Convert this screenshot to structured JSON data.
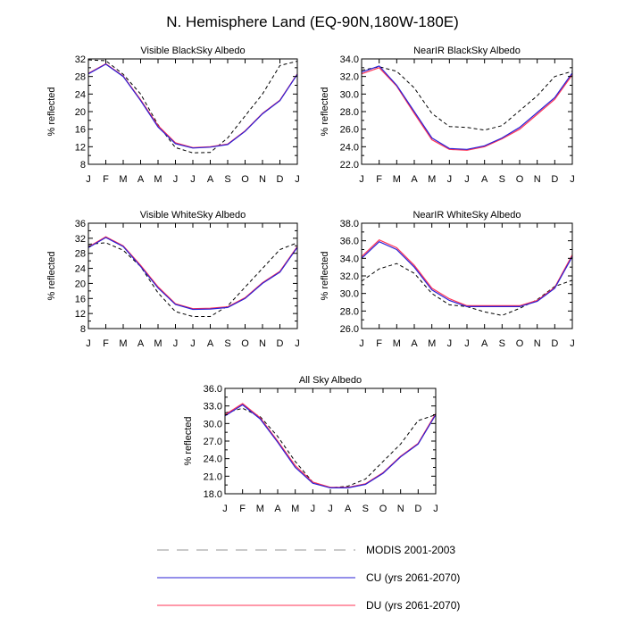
{
  "page_title": "N. Hemisphere Land (EQ-90N,180W-180E)",
  "colors": {
    "modis": "#000000",
    "cu": "#2a1fd6",
    "du": "#ff3355",
    "legend_modis": "#aaaaaa"
  },
  "legend": [
    {
      "label": "MODIS 2001-2003",
      "color": "#aaaaaa",
      "dash": true
    },
    {
      "label": "CU (yrs 2061-2070)",
      "color": "#2a1fd6",
      "dash": false
    },
    {
      "label": "DU (yrs 2061-2070)",
      "color": "#ff3355",
      "dash": false
    }
  ],
  "chart_data": [
    {
      "type": "line",
      "title": "Visible BlackSky Albedo",
      "ylabel": "% reflected",
      "categories": [
        "J",
        "F",
        "M",
        "A",
        "M",
        "J",
        "J",
        "A",
        "S",
        "O",
        "N",
        "D",
        "J"
      ],
      "ylim": [
        8,
        32
      ],
      "yticks": [
        "8",
        "12",
        "16",
        "20",
        "24",
        "28",
        "32"
      ],
      "series": [
        {
          "name": "MODIS 2001-2003",
          "values": [
            31.8,
            31.6,
            28.5,
            24.0,
            17.0,
            11.8,
            10.6,
            10.7,
            14.0,
            19.0,
            24.0,
            30.5,
            31.5
          ]
        },
        {
          "name": "CU (yrs 2061-2070)",
          "values": [
            28.6,
            30.8,
            28.0,
            22.5,
            16.5,
            12.7,
            11.7,
            11.9,
            12.5,
            15.5,
            19.5,
            22.5,
            28.5
          ]
        },
        {
          "name": "DU (yrs 2061-2070)",
          "values": [
            28.7,
            30.9,
            28.1,
            22.7,
            16.8,
            12.9,
            11.8,
            12.0,
            12.6,
            15.6,
            19.6,
            22.6,
            28.6
          ]
        }
      ]
    },
    {
      "type": "line",
      "title": "NearIR BlackSky Albedo",
      "ylabel": "% reflected",
      "categories": [
        "J",
        "F",
        "M",
        "A",
        "M",
        "J",
        "J",
        "A",
        "S",
        "O",
        "N",
        "D",
        "J"
      ],
      "ylim": [
        22,
        34
      ],
      "yticks": [
        "22.0",
        "24.0",
        "26.0",
        "28.0",
        "30.0",
        "32.0",
        "34.0"
      ],
      "series": [
        {
          "name": "MODIS 2001-2003",
          "values": [
            32.7,
            33.1,
            32.6,
            30.7,
            27.8,
            26.3,
            26.2,
            25.9,
            26.4,
            28.1,
            29.8,
            32.0,
            32.6
          ]
        },
        {
          "name": "CU (yrs 2061-2070)",
          "values": [
            32.5,
            33.2,
            31.0,
            28.0,
            25.0,
            23.8,
            23.7,
            24.1,
            25.0,
            26.2,
            27.9,
            29.6,
            32.4
          ]
        },
        {
          "name": "DU (yrs 2061-2070)",
          "values": [
            32.3,
            33.0,
            30.9,
            27.8,
            24.8,
            23.7,
            23.6,
            24.0,
            24.9,
            26.0,
            27.7,
            29.4,
            32.2
          ]
        }
      ]
    },
    {
      "type": "line",
      "title": "Visible WhiteSky Albedo",
      "ylabel": "% reflected",
      "categories": [
        "J",
        "F",
        "M",
        "A",
        "M",
        "J",
        "J",
        "A",
        "S",
        "O",
        "N",
        "D",
        "J"
      ],
      "ylim": [
        8,
        36
      ],
      "yticks": [
        "8",
        "12",
        "16",
        "20",
        "24",
        "28",
        "32",
        "36"
      ],
      "series": [
        {
          "name": "MODIS 2001-2003",
          "values": [
            30.4,
            30.8,
            28.8,
            24.5,
            17.5,
            12.5,
            11.2,
            11.2,
            14.0,
            19.0,
            24.0,
            29.0,
            30.8
          ]
        },
        {
          "name": "CU (yrs 2061-2070)",
          "values": [
            29.5,
            32.2,
            29.8,
            24.5,
            18.8,
            14.4,
            13.1,
            13.2,
            13.6,
            16.0,
            20.0,
            23.0,
            29.6
          ]
        },
        {
          "name": "DU (yrs 2061-2070)",
          "values": [
            29.7,
            32.4,
            30.0,
            24.8,
            19.1,
            14.6,
            13.3,
            13.4,
            13.8,
            16.2,
            20.2,
            23.2,
            29.8
          ]
        }
      ]
    },
    {
      "type": "line",
      "title": "NearIR WhiteSky Albedo",
      "ylabel": "% reflected",
      "categories": [
        "J",
        "F",
        "M",
        "A",
        "M",
        "J",
        "J",
        "A",
        "S",
        "O",
        "N",
        "D",
        "J"
      ],
      "ylim": [
        26,
        38
      ],
      "yticks": [
        "26.0",
        "28.0",
        "30.0",
        "32.0",
        "34.0",
        "36.0",
        "38.0"
      ],
      "series": [
        {
          "name": "MODIS 2001-2003",
          "values": [
            31.4,
            32.8,
            33.4,
            32.3,
            30.0,
            28.7,
            28.5,
            27.9,
            27.5,
            28.3,
            29.3,
            30.8,
            31.5
          ]
        },
        {
          "name": "CU (yrs 2061-2070)",
          "values": [
            34.0,
            35.9,
            35.0,
            33.0,
            30.4,
            29.2,
            28.5,
            28.5,
            28.5,
            28.5,
            29.1,
            30.6,
            34.2
          ]
        },
        {
          "name": "DU (yrs 2061-2070)",
          "values": [
            34.2,
            36.1,
            35.2,
            33.2,
            30.6,
            29.4,
            28.6,
            28.6,
            28.6,
            28.6,
            29.2,
            30.7,
            34.4
          ]
        }
      ]
    },
    {
      "type": "line",
      "title": "All Sky Albedo",
      "ylabel": "% reflected",
      "categories": [
        "J",
        "F",
        "M",
        "A",
        "M",
        "J",
        "J",
        "A",
        "S",
        "O",
        "N",
        "D",
        "J"
      ],
      "ylim": [
        18,
        36
      ],
      "yticks": [
        "18.0",
        "21.0",
        "24.0",
        "27.0",
        "30.0",
        "33.0",
        "36.0"
      ],
      "series": [
        {
          "name": "MODIS 2001-2003",
          "values": [
            31.8,
            32.6,
            31.2,
            27.8,
            23.5,
            20.0,
            19.0,
            19.3,
            20.5,
            23.5,
            26.5,
            30.5,
            31.5
          ]
        },
        {
          "name": "CU (yrs 2061-2070)",
          "values": [
            31.3,
            33.2,
            30.8,
            26.8,
            22.5,
            19.8,
            19.0,
            19.0,
            19.6,
            21.5,
            24.3,
            26.5,
            31.5
          ]
        },
        {
          "name": "DU (yrs 2061-2070)",
          "values": [
            31.5,
            33.4,
            31.0,
            27.0,
            22.8,
            20.0,
            19.1,
            19.1,
            19.7,
            21.6,
            24.4,
            26.6,
            31.7
          ]
        }
      ]
    }
  ]
}
